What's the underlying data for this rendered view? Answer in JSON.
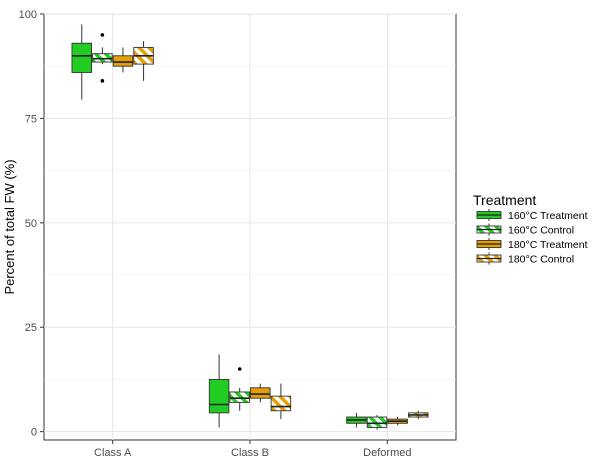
{
  "chart_data": {
    "type": "boxplot",
    "title": "",
    "xlabel": "",
    "ylabel": "Percent of total FW (%)",
    "ylim": [
      -2,
      100
    ],
    "yticks": [
      0,
      25,
      50,
      75,
      100
    ],
    "categories": [
      "Class A",
      "Class B",
      "Deformed"
    ],
    "legend": {
      "title": "Treatment",
      "position": "right"
    },
    "grid": true,
    "series": [
      {
        "name": "160°C Treatment",
        "fill": "#22cc22",
        "pattern": "solid",
        "boxes": [
          {
            "min": 79.5,
            "q1": 86,
            "median": 90,
            "q3": 93,
            "max": 97.5,
            "outliers": []
          },
          {
            "min": 1,
            "q1": 4.5,
            "median": 6.5,
            "q3": 12.5,
            "max": 18.5,
            "outliers": []
          },
          {
            "min": 1,
            "q1": 2,
            "median": 2.8,
            "q3": 3.5,
            "max": 4.5,
            "outliers": []
          }
        ]
      },
      {
        "name": "160°C Control",
        "fill": "#22cc22",
        "pattern": "stripe",
        "boxes": [
          {
            "min": 88,
            "q1": 88.5,
            "median": 89.3,
            "q3": 90.5,
            "max": 92,
            "outliers": [
              95,
              84
            ]
          },
          {
            "min": 5,
            "q1": 7,
            "median": 8,
            "q3": 9.5,
            "max": 10.5,
            "outliers": [
              15
            ]
          },
          {
            "min": 0.5,
            "q1": 1,
            "median": 2,
            "q3": 3.5,
            "max": 4,
            "outliers": []
          }
        ]
      },
      {
        "name": "180°C Treatment",
        "fill": "#e69f00",
        "pattern": "solid",
        "boxes": [
          {
            "min": 86,
            "q1": 87.5,
            "median": 88.5,
            "q3": 90,
            "max": 92,
            "outliers": []
          },
          {
            "min": 7,
            "q1": 8,
            "median": 9,
            "q3": 10.5,
            "max": 11.5,
            "outliers": []
          },
          {
            "min": 1.5,
            "q1": 2,
            "median": 2.5,
            "q3": 3,
            "max": 3.5,
            "outliers": []
          }
        ]
      },
      {
        "name": "180°C Control",
        "fill": "#e69f00",
        "pattern": "stripe",
        "boxes": [
          {
            "min": 84,
            "q1": 88,
            "median": 90,
            "q3": 92,
            "max": 93.5,
            "outliers": []
          },
          {
            "min": 3,
            "q1": 5,
            "median": 6,
            "q3": 8.5,
            "max": 11.5,
            "outliers": []
          },
          {
            "min": 3,
            "q1": 3.5,
            "median": 4,
            "q3": 4.5,
            "max": 5,
            "outliers": []
          }
        ]
      }
    ]
  }
}
